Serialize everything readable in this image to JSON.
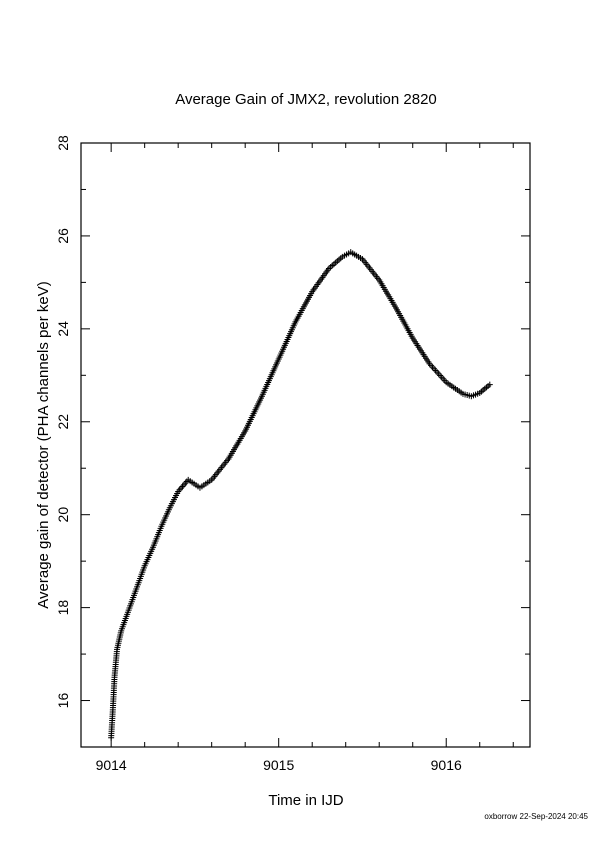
{
  "chart_data": {
    "type": "scatter",
    "title": "Average Gain of JMX2, revolution 2820",
    "xlabel": "Time in IJD",
    "ylabel": "Average gain of detector (PHA channels per keV)",
    "xlim": [
      9013.82,
      9016.5
    ],
    "ylim": [
      15,
      28
    ],
    "xticks": [
      9014,
      9015,
      9016
    ],
    "yticks": [
      16,
      18,
      20,
      22,
      24,
      26,
      28
    ],
    "grid": false,
    "marker": "plus",
    "point_color": "#000000",
    "series": [
      {
        "points": [
          [
            9014.0,
            15.2
          ],
          [
            9014.01,
            15.8
          ],
          [
            9014.02,
            16.5
          ],
          [
            9014.035,
            17.1
          ],
          [
            9014.06,
            17.5
          ],
          [
            9014.1,
            17.9
          ],
          [
            9014.15,
            18.4
          ],
          [
            9014.2,
            18.9
          ],
          [
            9014.25,
            19.3
          ],
          [
            9014.3,
            19.75
          ],
          [
            9014.35,
            20.15
          ],
          [
            9014.4,
            20.5
          ],
          [
            9014.46,
            20.75
          ],
          [
            9014.53,
            20.58
          ],
          [
            9014.6,
            20.75
          ],
          [
            9014.7,
            21.2
          ],
          [
            9014.8,
            21.8
          ],
          [
            9014.9,
            22.55
          ],
          [
            9015.0,
            23.35
          ],
          [
            9015.1,
            24.15
          ],
          [
            9015.2,
            24.8
          ],
          [
            9015.3,
            25.3
          ],
          [
            9015.38,
            25.55
          ],
          [
            9015.43,
            25.65
          ],
          [
            9015.5,
            25.5
          ],
          [
            9015.6,
            25.05
          ],
          [
            9015.7,
            24.45
          ],
          [
            9015.8,
            23.8
          ],
          [
            9015.9,
            23.25
          ],
          [
            9016.0,
            22.85
          ],
          [
            9016.1,
            22.6
          ],
          [
            9016.15,
            22.55
          ],
          [
            9016.2,
            22.62
          ],
          [
            9016.26,
            22.8
          ]
        ]
      }
    ]
  },
  "footer": "oxborrow 22-Sep-2024 20:45"
}
